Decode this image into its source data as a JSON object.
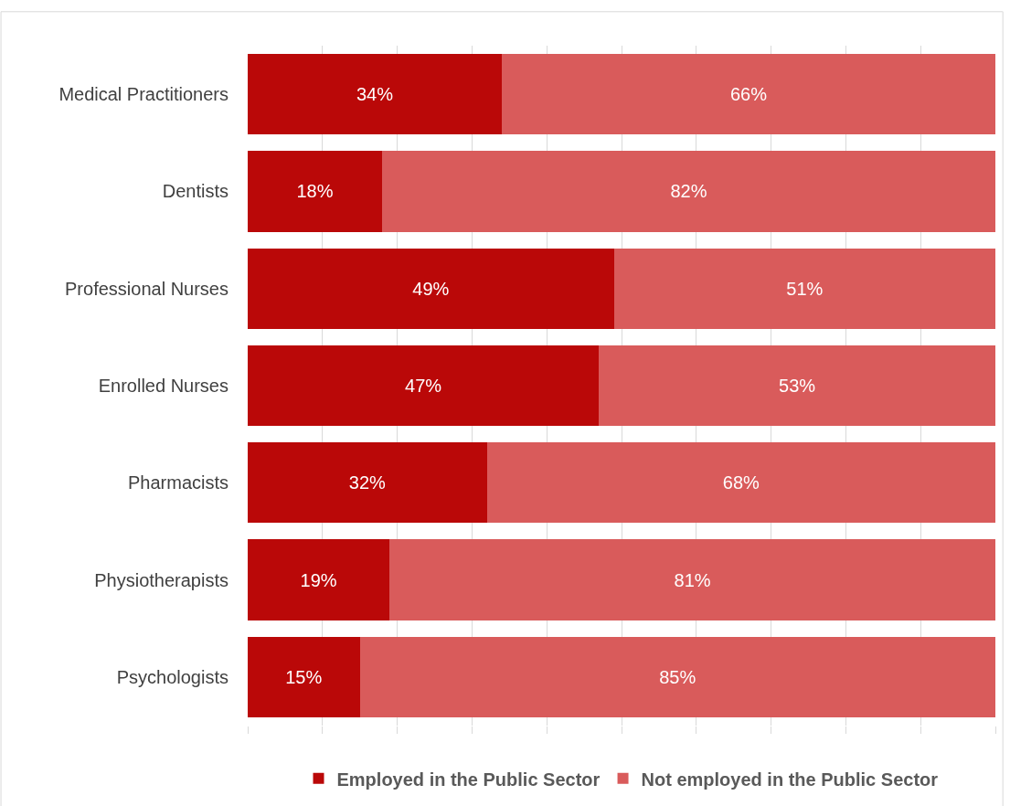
{
  "chart_data": {
    "type": "bar",
    "orientation": "horizontal",
    "stacked": true,
    "categories": [
      "Medical Practitioners",
      "Dentists",
      "Professional Nurses",
      "Enrolled Nurses",
      "Pharmacists",
      "Physiotherapists",
      "Psychologists"
    ],
    "series": [
      {
        "name": "Employed in the Public Sector",
        "color": "#ba0808",
        "values": [
          34,
          18,
          49,
          47,
          32,
          19,
          15
        ],
        "value_labels": [
          "34%",
          "18%",
          "49%",
          "47%",
          "32%",
          "19%",
          "15%"
        ]
      },
      {
        "name": "Not employed in the Public Sector",
        "color": "#d95b5b",
        "values": [
          66,
          82,
          51,
          53,
          68,
          81,
          85
        ],
        "value_labels": [
          "66%",
          "82%",
          "51%",
          "53%",
          "68%",
          "81%",
          "85%"
        ]
      }
    ],
    "xlim": [
      0,
      100
    ],
    "xticks": [
      {
        "value": 0,
        "label": null
      },
      {
        "value": 10,
        "label": null
      },
      {
        "value": 20,
        "label": null
      },
      {
        "value": 30,
        "label": null
      },
      {
        "value": 40,
        "label": null
      },
      {
        "value": 50,
        "label": null
      },
      {
        "value": 60,
        "label": null
      },
      {
        "value": 70,
        "label": null
      },
      {
        "value": 80,
        "label": null
      },
      {
        "value": 90,
        "label": null
      },
      {
        "value": 100,
        "label": null
      }
    ],
    "tick_labels": "y",
    "grid": "x",
    "legend": "bottom"
  }
}
